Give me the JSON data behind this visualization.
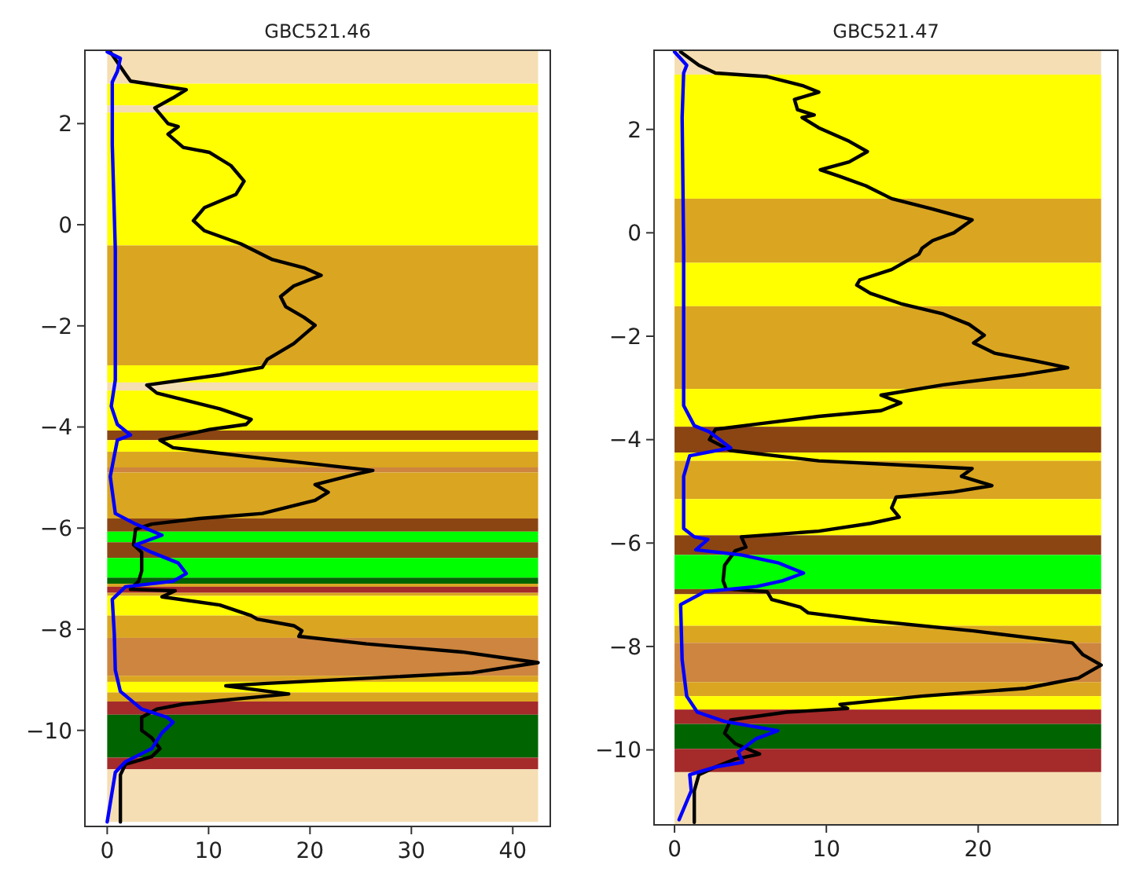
{
  "chart_data": [
    {
      "type": "line",
      "title": "GBC521.46",
      "xlim": [
        -2.2,
        43.7
      ],
      "ylim": [
        -11.9,
        3.45
      ],
      "xticks": [
        0,
        10,
        20,
        30,
        40
      ],
      "yticks": [
        {
          "value": -10,
          "label": "−10"
        },
        {
          "value": -8,
          "label": "−8"
        },
        {
          "value": -6,
          "label": "−6"
        },
        {
          "value": -4,
          "label": "−4"
        },
        {
          "value": -2,
          "label": "−2"
        },
        {
          "value": 0,
          "label": "0"
        },
        {
          "value": 2,
          "label": "2"
        }
      ],
      "bands": [
        {
          "axis": "y",
          "from": 3.45,
          "to": 2.79,
          "color": "#f5deb3"
        },
        {
          "axis": "y",
          "from": 2.79,
          "to": 2.36,
          "color": "#ffff00"
        },
        {
          "axis": "y",
          "from": 2.36,
          "to": 2.22,
          "color": "#f5deb3"
        },
        {
          "axis": "y",
          "from": 2.22,
          "to": -0.41,
          "color": "#ffff00"
        },
        {
          "axis": "y",
          "from": -0.41,
          "to": -2.78,
          "color": "#daa520"
        },
        {
          "axis": "y",
          "from": -2.78,
          "to": -3.12,
          "color": "#ffff00"
        },
        {
          "axis": "y",
          "from": -3.12,
          "to": -3.28,
          "color": "#f5deb3"
        },
        {
          "axis": "y",
          "from": -3.28,
          "to": -4.07,
          "color": "#ffff00"
        },
        {
          "axis": "y",
          "from": -4.07,
          "to": -4.26,
          "color": "#8b4513"
        },
        {
          "axis": "y",
          "from": -4.26,
          "to": -4.49,
          "color": "#ffff00"
        },
        {
          "axis": "y",
          "from": -4.49,
          "to": -4.8,
          "color": "#daa520"
        },
        {
          "axis": "y",
          "from": -4.8,
          "to": -4.9,
          "color": "#cd853f"
        },
        {
          "axis": "y",
          "from": -4.9,
          "to": -5.81,
          "color": "#daa520"
        },
        {
          "axis": "y",
          "from": -5.81,
          "to": -6.07,
          "color": "#8b4513"
        },
        {
          "axis": "y",
          "from": -6.07,
          "to": -6.28,
          "color": "#00ff00"
        },
        {
          "axis": "y",
          "from": -6.28,
          "to": -6.59,
          "color": "#8b4513"
        },
        {
          "axis": "y",
          "from": -6.59,
          "to": -6.98,
          "color": "#00ff00"
        },
        {
          "axis": "y",
          "from": -6.98,
          "to": -7.1,
          "color": "#006400"
        },
        {
          "axis": "y",
          "from": -7.1,
          "to": -7.16,
          "color": "#daa520"
        },
        {
          "axis": "y",
          "from": -7.16,
          "to": -7.28,
          "color": "#a52a2a"
        },
        {
          "axis": "y",
          "from": -7.28,
          "to": -7.34,
          "color": "#daa520"
        },
        {
          "axis": "y",
          "from": -7.34,
          "to": -7.73,
          "color": "#ffff00"
        },
        {
          "axis": "y",
          "from": -7.73,
          "to": -8.17,
          "color": "#daa520"
        },
        {
          "axis": "y",
          "from": -8.17,
          "to": -8.92,
          "color": "#cd853f"
        },
        {
          "axis": "y",
          "from": -8.92,
          "to": -9.04,
          "color": "#daa520"
        },
        {
          "axis": "y",
          "from": -9.04,
          "to": -9.25,
          "color": "#ffff00"
        },
        {
          "axis": "y",
          "from": -9.25,
          "to": -9.43,
          "color": "#daa520"
        },
        {
          "axis": "y",
          "from": -9.43,
          "to": -9.69,
          "color": "#a52a2a"
        },
        {
          "axis": "y",
          "from": -9.69,
          "to": -10.54,
          "color": "#006400"
        },
        {
          "axis": "y",
          "from": -10.54,
          "to": -10.77,
          "color": "#a52a2a"
        },
        {
          "axis": "y",
          "from": -10.77,
          "to": -11.81,
          "color": "#f5deb3"
        }
      ],
      "series": [
        {
          "color": "#000000",
          "x": [
            0.3,
            1.8,
            2.3,
            7.8,
            6.5,
            4.7,
            6.0,
            7.0,
            6.0,
            7.5,
            10.1,
            12.2,
            13.5,
            12.7,
            9.6,
            8.5,
            9.6,
            13.2,
            16.3,
            19.4,
            21.1,
            18.4,
            17.1,
            17.6,
            19.4,
            20.5,
            18.4,
            15.8,
            15.3,
            11.1,
            3.9,
            4.9,
            11.1,
            14.2,
            13.7,
            10.1,
            5.2,
            6.5,
            15.3,
            26.2,
            24.6,
            20.5,
            21.8,
            20.5,
            15.3,
            9.1,
            4.4,
            2.8,
            2.6,
            3.4,
            3.4,
            3.1,
            2.3,
            6.7,
            5.4,
            11.1,
            14.2,
            14.8,
            18.4,
            19.2,
            18.9,
            25.6,
            35.0,
            42.5,
            36.0,
            25.6,
            15.8,
            11.7,
            17.9,
            7.5,
            4.9,
            3.4,
            3.4,
            4.4,
            5.2,
            4.4,
            1.8,
            1.3,
            1.3
          ],
          "values": [
            3.42,
            2.98,
            2.84,
            2.67,
            2.51,
            2.31,
            2.0,
            1.94,
            1.79,
            1.53,
            1.43,
            1.17,
            0.86,
            0.6,
            0.34,
            0.08,
            -0.12,
            -0.38,
            -0.69,
            -0.85,
            -1.0,
            -1.21,
            -1.42,
            -1.62,
            -1.83,
            -1.99,
            -2.35,
            -2.66,
            -2.82,
            -2.97,
            -3.17,
            -3.33,
            -3.64,
            -3.85,
            -3.95,
            -4.05,
            -4.26,
            -4.41,
            -4.62,
            -4.86,
            -4.93,
            -5.14,
            -5.29,
            -5.45,
            -5.71,
            -5.81,
            -5.92,
            -6.02,
            -6.33,
            -6.48,
            -6.85,
            -7.05,
            -7.21,
            -7.24,
            -7.36,
            -7.52,
            -7.73,
            -7.8,
            -7.93,
            -8.03,
            -8.14,
            -8.29,
            -8.45,
            -8.66,
            -8.86,
            -8.97,
            -9.07,
            -9.12,
            -9.28,
            -9.48,
            -9.58,
            -9.74,
            -10.0,
            -10.15,
            -10.36,
            -10.52,
            -10.67,
            -10.88,
            -11.81
          ]
        },
        {
          "color": "#0000ff",
          "x": [
            0,
            1.3,
            1.0,
            0.5,
            0.5,
            0.8,
            0.8,
            0.4,
            1.0,
            2.3,
            1.0,
            0.3,
            0.8,
            2.8,
            5.4,
            2.8,
            4.4,
            7.0,
            7.8,
            6.5,
            1.8,
            0.5,
            0.7,
            0.8,
            1.3,
            3.4,
            5.9,
            6.5,
            5.4,
            4.4,
            1.8,
            0.8,
            0
          ],
          "values": [
            3.42,
            3.29,
            3.03,
            2.82,
            1.58,
            -0.49,
            -3.07,
            -3.59,
            -3.95,
            -4.16,
            -4.26,
            -4.98,
            -5.71,
            -5.92,
            -6.14,
            -6.33,
            -6.48,
            -6.69,
            -6.9,
            -7.05,
            -7.16,
            -7.41,
            -8.09,
            -8.81,
            -9.23,
            -9.58,
            -9.74,
            -9.84,
            -10.05,
            -10.36,
            -10.62,
            -10.83,
            -11.81
          ]
        }
      ]
    },
    {
      "type": "line",
      "title": "GBC521.47",
      "xlim": [
        -1.35,
        29.2
      ],
      "ylim": [
        -11.45,
        3.53
      ],
      "xticks": [
        0,
        10,
        20
      ],
      "yticks": [
        {
          "value": -10,
          "label": "−10"
        },
        {
          "value": -8,
          "label": "−8"
        },
        {
          "value": -6,
          "label": "−6"
        },
        {
          "value": -4,
          "label": "−4"
        },
        {
          "value": -2,
          "label": "−2"
        },
        {
          "value": 0,
          "label": "0"
        },
        {
          "value": 2,
          "label": "2"
        }
      ],
      "bands": [
        {
          "axis": "y",
          "from": 3.53,
          "to": 3.06,
          "color": "#f5deb3"
        },
        {
          "axis": "y",
          "from": 3.06,
          "to": 0.66,
          "color": "#ffff00"
        },
        {
          "axis": "y",
          "from": 0.66,
          "to": -0.58,
          "color": "#daa520"
        },
        {
          "axis": "y",
          "from": -0.58,
          "to": -1.42,
          "color": "#ffff00"
        },
        {
          "axis": "y",
          "from": -1.42,
          "to": -3.02,
          "color": "#daa520"
        },
        {
          "axis": "y",
          "from": -3.02,
          "to": -3.75,
          "color": "#ffff00"
        },
        {
          "axis": "y",
          "from": -3.75,
          "to": -4.25,
          "color": "#8b4513"
        },
        {
          "axis": "y",
          "from": -4.25,
          "to": -4.41,
          "color": "#ffff00"
        },
        {
          "axis": "y",
          "from": -4.41,
          "to": -5.15,
          "color": "#daa520"
        },
        {
          "axis": "y",
          "from": -5.15,
          "to": -5.85,
          "color": "#ffff00"
        },
        {
          "axis": "y",
          "from": -5.85,
          "to": -6.23,
          "color": "#8b4513"
        },
        {
          "axis": "y",
          "from": -6.23,
          "to": -6.89,
          "color": "#00ff00"
        },
        {
          "axis": "y",
          "from": -6.89,
          "to": -6.99,
          "color": "#8b4513"
        },
        {
          "axis": "y",
          "from": -6.99,
          "to": -7.6,
          "color": "#ffff00"
        },
        {
          "axis": "y",
          "from": -7.6,
          "to": -7.93,
          "color": "#daa520"
        },
        {
          "axis": "y",
          "from": -7.93,
          "to": -8.69,
          "color": "#cd853f"
        },
        {
          "axis": "y",
          "from": -8.69,
          "to": -8.96,
          "color": "#daa520"
        },
        {
          "axis": "y",
          "from": -8.96,
          "to": -9.22,
          "color": "#ffff00"
        },
        {
          "axis": "y",
          "from": -9.22,
          "to": -9.5,
          "color": "#a52a2a"
        },
        {
          "axis": "y",
          "from": -9.5,
          "to": -9.98,
          "color": "#006400"
        },
        {
          "axis": "y",
          "from": -9.98,
          "to": -10.43,
          "color": "#a52a2a"
        },
        {
          "axis": "y",
          "from": -10.43,
          "to": -11.45,
          "color": "#f5deb3"
        }
      ],
      "series": [
        {
          "color": "#000000",
          "x": [
            0.4,
            1.6,
            2.7,
            6.1,
            8.5,
            9.5,
            7.9,
            8.1,
            9.2,
            8.4,
            9.5,
            11.5,
            12.7,
            11.5,
            9.6,
            10.9,
            12.6,
            14.3,
            17.0,
            19.6,
            18.4,
            17.0,
            16.3,
            16.1,
            14.3,
            12.2,
            12.0,
            12.9,
            14.9,
            17.7,
            19.4,
            20.4,
            19.7,
            21.1,
            23.8,
            25.9,
            23.1,
            17.7,
            13.6,
            14.9,
            13.6,
            9.5,
            5.4,
            2.7,
            2.3,
            3.7,
            9.5,
            16.3,
            19.6,
            18.9,
            20.9,
            18.4,
            14.6,
            14.3,
            14.8,
            12.9,
            9.5,
            4.4,
            4.7,
            4.0,
            3.3,
            3.2,
            3.4,
            6.1,
            6.4,
            8.3,
            8.8,
            12.9,
            19.7,
            26.2,
            26.9,
            28.1,
            26.6,
            23.1,
            16.3,
            10.9,
            11.4,
            7.4,
            3.7,
            3.3,
            4.0,
            5.6,
            4.0,
            2.7,
            1.6,
            1.3,
            1.3
          ],
          "values": [
            3.5,
            3.24,
            3.09,
            3.02,
            2.84,
            2.72,
            2.58,
            2.38,
            2.28,
            2.23,
            2.03,
            1.77,
            1.57,
            1.37,
            1.22,
            1.09,
            0.91,
            0.66,
            0.46,
            0.25,
            0.0,
            -0.15,
            -0.3,
            -0.41,
            -0.71,
            -0.91,
            -1.01,
            -1.17,
            -1.37,
            -1.57,
            -1.77,
            -1.98,
            -2.13,
            -2.33,
            -2.48,
            -2.61,
            -2.74,
            -2.94,
            -3.14,
            -3.29,
            -3.44,
            -3.55,
            -3.7,
            -3.8,
            -4.0,
            -4.21,
            -4.41,
            -4.51,
            -4.56,
            -4.71,
            -4.89,
            -5.01,
            -5.11,
            -5.32,
            -5.5,
            -5.62,
            -5.77,
            -5.88,
            -6.08,
            -6.15,
            -6.43,
            -6.73,
            -6.89,
            -6.94,
            -7.09,
            -7.24,
            -7.35,
            -7.5,
            -7.7,
            -7.93,
            -8.16,
            -8.36,
            -8.61,
            -8.81,
            -8.96,
            -9.12,
            -9.2,
            -9.27,
            -9.42,
            -9.68,
            -9.88,
            -10.08,
            -10.18,
            -10.33,
            -10.48,
            -10.79,
            -11.4
          ]
        },
        {
          "color": "#0000ff",
          "x": [
            0,
            0.8,
            0.6,
            0.5,
            0.6,
            0.6,
            1.3,
            2.3,
            3.7,
            1.0,
            0.6,
            0.6,
            1.3,
            2.2,
            1.4,
            4.4,
            6.8,
            8.5,
            7.1,
            5.4,
            2.0,
            0.4,
            0.5,
            0.8,
            1.5,
            3.3,
            6.8,
            5.4,
            4.2,
            4.5,
            2.7,
            1.0,
            1.1,
            0.3
          ],
          "values": [
            3.5,
            3.24,
            3.09,
            2.23,
            -0.3,
            -3.34,
            -3.73,
            -3.85,
            -4.16,
            -4.31,
            -4.71,
            -5.72,
            -5.88,
            -5.93,
            -6.13,
            -6.23,
            -6.38,
            -6.58,
            -6.73,
            -6.84,
            -6.94,
            -7.19,
            -8.26,
            -8.96,
            -9.27,
            -9.45,
            -9.63,
            -9.78,
            -10.04,
            -10.24,
            -10.33,
            -10.48,
            -10.79,
            -11.35
          ]
        }
      ]
    }
  ]
}
